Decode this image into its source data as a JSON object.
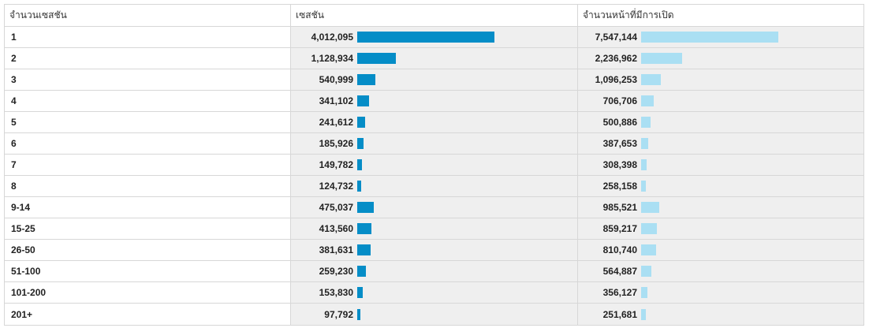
{
  "headers": {
    "col1": "จำนวนเซสชัน",
    "col2": "เซสชัน",
    "col3": "จำนวนหน้าที่มีการเปิด"
  },
  "colors": {
    "sessions_bar": "#058dc7",
    "pageviews_bar": "#aadff3"
  },
  "rows": [
    {
      "label": "1",
      "sessions": "4,012,095",
      "sessions_value": 4012095,
      "pageviews": "7,547,144",
      "pageviews_value": 7547144
    },
    {
      "label": "2",
      "sessions": "1,128,934",
      "sessions_value": 1128934,
      "pageviews": "2,236,962",
      "pageviews_value": 2236962
    },
    {
      "label": "3",
      "sessions": "540,999",
      "sessions_value": 540999,
      "pageviews": "1,096,253",
      "pageviews_value": 1096253
    },
    {
      "label": "4",
      "sessions": "341,102",
      "sessions_value": 341102,
      "pageviews": "706,706",
      "pageviews_value": 706706
    },
    {
      "label": "5",
      "sessions": "241,612",
      "sessions_value": 241612,
      "pageviews": "500,886",
      "pageviews_value": 500886
    },
    {
      "label": "6",
      "sessions": "185,926",
      "sessions_value": 185926,
      "pageviews": "387,653",
      "pageviews_value": 387653
    },
    {
      "label": "7",
      "sessions": "149,782",
      "sessions_value": 149782,
      "pageviews": "308,398",
      "pageviews_value": 308398
    },
    {
      "label": "8",
      "sessions": "124,732",
      "sessions_value": 124732,
      "pageviews": "258,158",
      "pageviews_value": 258158
    },
    {
      "label": "9-14",
      "sessions": "475,037",
      "sessions_value": 475037,
      "pageviews": "985,521",
      "pageviews_value": 985521
    },
    {
      "label": "15-25",
      "sessions": "413,560",
      "sessions_value": 413560,
      "pageviews": "859,217",
      "pageviews_value": 859217
    },
    {
      "label": "26-50",
      "sessions": "381,631",
      "sessions_value": 381631,
      "pageviews": "810,740",
      "pageviews_value": 810740
    },
    {
      "label": "51-100",
      "sessions": "259,230",
      "sessions_value": 259230,
      "pageviews": "564,887",
      "pageviews_value": 564887
    },
    {
      "label": "101-200",
      "sessions": "153,830",
      "sessions_value": 153830,
      "pageviews": "356,127",
      "pageviews_value": 356127
    },
    {
      "label": "201+",
      "sessions": "97,792",
      "sessions_value": 97792,
      "pageviews": "251,681",
      "pageviews_value": 251681
    }
  ]
}
